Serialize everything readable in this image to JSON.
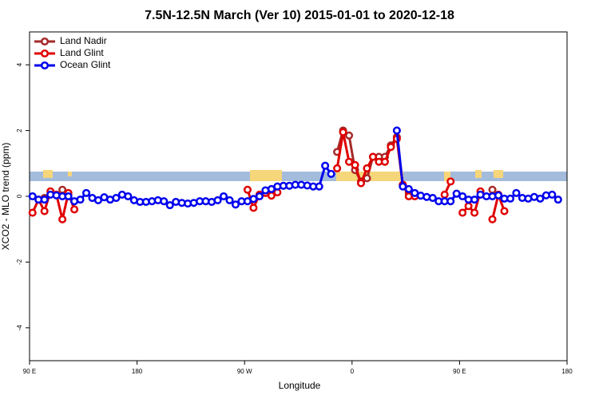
{
  "chart_data": {
    "type": "line",
    "title": "7.5N-12.5N March (Ver 10)   2015-01-01 to 2020-12-18",
    "xlabel": "Longitude",
    "ylabel": "XCO2 - MLO trend (ppm)",
    "xlim": [
      90,
      540
    ],
    "ylim": [
      -5,
      5
    ],
    "xticks": [
      {
        "value": 90,
        "label": "90 E"
      },
      {
        "value": 180,
        "label": "180"
      },
      {
        "value": 270,
        "label": "90 W"
      },
      {
        "value": 360,
        "label": "0"
      },
      {
        "value": 450,
        "label": "90 E"
      },
      {
        "value": 540,
        "label": "180"
      }
    ],
    "yticks": [
      -4,
      -2,
      0,
      2,
      4
    ],
    "legend": "top-left",
    "x": [
      92.5,
      97.5,
      102.5,
      107.5,
      112.5,
      117.5,
      122.5,
      127.5,
      132.5,
      137.5,
      142.5,
      147.5,
      152.5,
      157.5,
      162.5,
      167.5,
      172.5,
      177.5,
      182.5,
      187.5,
      192.5,
      197.5,
      202.5,
      207.5,
      212.5,
      217.5,
      222.5,
      227.5,
      232.5,
      237.5,
      242.5,
      247.5,
      252.5,
      257.5,
      262.5,
      267.5,
      272.5,
      277.5,
      282.5,
      287.5,
      292.5,
      297.5,
      302.5,
      307.5,
      312.5,
      317.5,
      322.5,
      327.5,
      332.5,
      337.5,
      342.5,
      347.5,
      352.5,
      357.5,
      362.5,
      367.5,
      372.5,
      377.5,
      382.5,
      387.5,
      392.5,
      397.5,
      402.5,
      407.5,
      412.5,
      417.5,
      422.5,
      427.5,
      432.5,
      437.5,
      442.5,
      447.5,
      452.5,
      457.5,
      462.5,
      467.5,
      472.5,
      477.5,
      482.5,
      487.5,
      492.5,
      497.5,
      502.5,
      507.5,
      512.5,
      517.5,
      522.5,
      527.5,
      532.5
    ],
    "series": [
      {
        "name": "Land Nadir",
        "color": "#a52a2a",
        "values": [
          null,
          null,
          -0.05,
          null,
          null,
          0.2,
          0.05,
          null,
          null,
          null,
          null,
          null,
          null,
          null,
          null,
          null,
          null,
          null,
          null,
          null,
          null,
          null,
          null,
          null,
          null,
          null,
          null,
          null,
          null,
          null,
          null,
          null,
          null,
          null,
          null,
          null,
          null,
          null,
          null,
          null,
          null,
          null,
          null,
          null,
          null,
          null,
          null,
          null,
          null,
          null,
          null,
          1.35,
          2.0,
          1.85,
          0.8,
          0.45,
          0.55,
          1.2,
          1.2,
          1.2,
          1.55,
          1.8,
          0.35,
          0.1,
          0.05,
          null,
          null,
          null,
          null,
          null,
          null,
          null,
          null,
          null,
          null,
          null,
          null,
          0.2,
          null,
          null,
          null,
          null,
          null,
          null,
          null,
          null,
          null,
          null,
          null
        ]
      },
      {
        "name": "Land Glint",
        "color": "#e00000",
        "values": [
          -0.5,
          -0.1,
          -0.45,
          0.15,
          0.05,
          -0.7,
          0.1,
          -0.4,
          null,
          null,
          null,
          null,
          null,
          null,
          null,
          null,
          null,
          null,
          null,
          null,
          null,
          null,
          null,
          null,
          null,
          null,
          null,
          null,
          null,
          null,
          null,
          null,
          null,
          null,
          null,
          null,
          0.2,
          -0.35,
          0.05,
          0.1,
          0.02,
          0.12,
          null,
          null,
          null,
          null,
          null,
          null,
          null,
          null,
          null,
          0.85,
          1.95,
          1.05,
          0.95,
          0.4,
          0.85,
          1.2,
          1.05,
          1.05,
          1.5,
          1.75,
          0.35,
          0.0,
          0.0,
          null,
          null,
          null,
          null,
          0.05,
          0.45,
          null,
          -0.5,
          -0.3,
          -0.5,
          0.15,
          null,
          -0.7,
          0.05,
          -0.45,
          null,
          null,
          null,
          null,
          null,
          null,
          null,
          null,
          null
        ]
      },
      {
        "name": "Ocean Glint",
        "color": "#0000ee",
        "values": [
          0.0,
          -0.1,
          -0.1,
          0.05,
          0.03,
          0.0,
          0.0,
          -0.15,
          -0.1,
          0.1,
          -0.05,
          -0.12,
          -0.03,
          -0.1,
          -0.05,
          0.05,
          0.0,
          -0.12,
          -0.17,
          -0.17,
          -0.15,
          -0.12,
          -0.15,
          -0.27,
          -0.17,
          -0.2,
          -0.22,
          -0.2,
          -0.15,
          -0.15,
          -0.17,
          -0.12,
          0.0,
          -0.12,
          -0.25,
          -0.15,
          -0.15,
          -0.08,
          0.0,
          0.18,
          0.22,
          0.3,
          0.32,
          0.32,
          0.35,
          0.35,
          0.33,
          0.3,
          0.3,
          0.93,
          0.68,
          null,
          null,
          null,
          null,
          null,
          null,
          null,
          null,
          null,
          null,
          2.0,
          0.3,
          0.22,
          0.1,
          0.02,
          -0.02,
          -0.05,
          -0.15,
          -0.15,
          -0.15,
          0.08,
          0.0,
          -0.1,
          -0.1,
          0.05,
          0.0,
          0.0,
          0.03,
          -0.07,
          -0.07,
          0.1,
          -0.05,
          -0.07,
          -0.02,
          -0.07,
          0.03,
          0.05,
          -0.1
        ]
      }
    ]
  }
}
